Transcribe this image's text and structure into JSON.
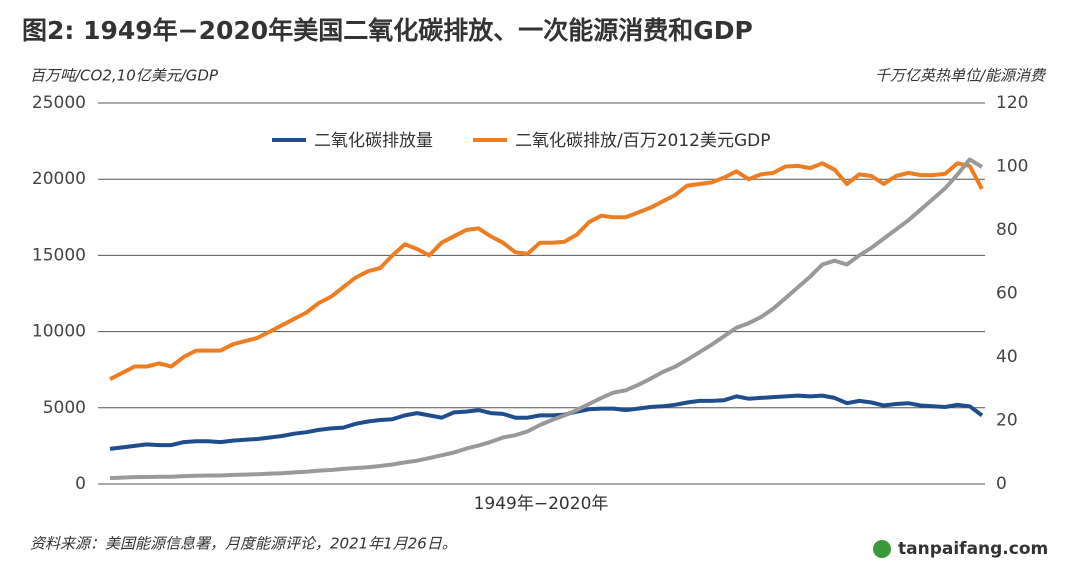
{
  "chart_data": {
    "type": "line",
    "title": "图2: 1949年−2020年美国二氧化碳排放、一次能源消费和GDP",
    "ylabel": "百万吨/CO2,10亿美元/GDP",
    "y2label": "千万亿英热单位/能源消费",
    "xlabel": "1949年−2020年",
    "source": "资料来源：美国能源信息署，月度能源评论，2021年1月26日。",
    "logo": "tanpaifang.com",
    "ylim": [
      0,
      25000
    ],
    "yticks": [
      0,
      5000,
      10000,
      15000,
      20000,
      25000
    ],
    "y2lim": [
      0,
      120
    ],
    "y2ticks": [
      0,
      20,
      40,
      60,
      80,
      100,
      120
    ],
    "grid": true,
    "legend": "top",
    "series": [
      {
        "name": "二氧化碳排放量",
        "color": "#1f4e8c",
        "values": [
          2300,
          2400,
          2500,
          2600,
          2550,
          2550,
          2750,
          2800,
          2800,
          2750,
          2850,
          2900,
          2950,
          3050,
          3150,
          3300,
          3400,
          3550,
          3650,
          3700,
          3950,
          4100,
          4200,
          4250,
          4500,
          4650,
          4500,
          4350,
          4700,
          4750,
          4850,
          4650,
          4600,
          4350,
          4350,
          4500,
          4500,
          4550,
          4750,
          4900,
          4950,
          4950,
          4850,
          4950,
          5050,
          5100,
          5200,
          5350,
          5450,
          5450,
          5500,
          5750,
          5600,
          5650,
          5700,
          5750,
          5800,
          5750,
          5800,
          5650,
          5300,
          5450,
          5350,
          5150,
          5250,
          5300,
          5150,
          5100,
          5050,
          5200,
          5100,
          4500
        ]
      },
      {
        "name": "二氧化碳排放/百万2012美元GDP",
        "color": "#ee7d22",
        "axis": "y2",
        "values": [
          33,
          35,
          37,
          37,
          38,
          37,
          40,
          42,
          42,
          42,
          44,
          45,
          46,
          48,
          50,
          52,
          54,
          57,
          59,
          62,
          65,
          67,
          68,
          72,
          75.5,
          74,
          72,
          76,
          78,
          80,
          80.5,
          78,
          76,
          73,
          72.5,
          76,
          76,
          76.3,
          78.5,
          82.5,
          84.5,
          84,
          84,
          85.5,
          87,
          89,
          91,
          94,
          94.5,
          95,
          96.5,
          98.5,
          96,
          97.5,
          98,
          100,
          100.2,
          99.5,
          101,
          99,
          94.5,
          97.5,
          97,
          94.5,
          97,
          98,
          97.3,
          97.3,
          97.7,
          101,
          100.2,
          92.9
        ]
      },
      {
        "color": "#999999",
        "values": [
          390,
          420,
          450,
          460,
          480,
          480,
          520,
          540,
          560,
          560,
          600,
          620,
          640,
          680,
          710,
          760,
          810,
          880,
          920,
          990,
          1050,
          1100,
          1180,
          1280,
          1420,
          1530,
          1700,
          1880,
          2070,
          2320,
          2520,
          2760,
          3050,
          3200,
          3450,
          3870,
          4200,
          4500,
          4850,
          5250,
          5650,
          6000,
          6150,
          6500,
          6900,
          7350,
          7700,
          8150,
          8650,
          9150,
          9700,
          10250,
          10550,
          10950,
          11500,
          12200,
          12900,
          13600,
          14400,
          14650,
          14400,
          15000,
          15500,
          16100,
          16700,
          17300,
          18000,
          18700,
          19400,
          20300,
          21300,
          20800
        ]
      }
    ]
  }
}
